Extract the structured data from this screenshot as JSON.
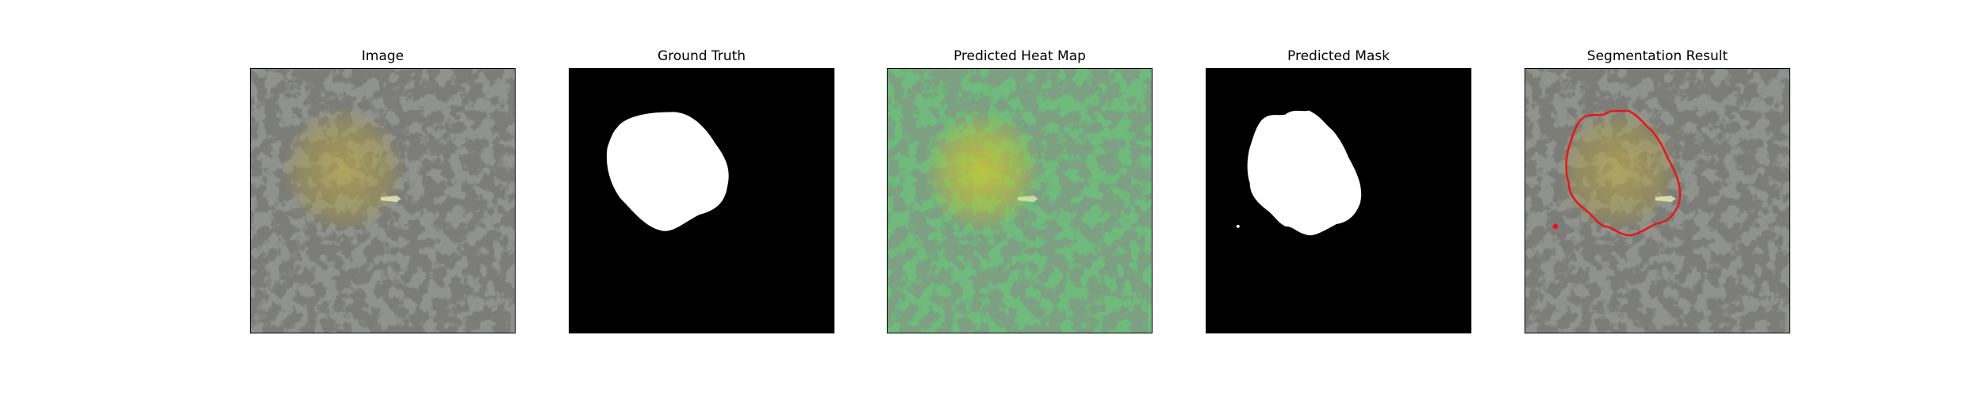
{
  "panels": [
    {
      "title": "Image"
    },
    {
      "title": "Ground Truth"
    },
    {
      "title": "Predicted Heat Map"
    },
    {
      "title": "Predicted Mask"
    },
    {
      "title": "Segmentation Result"
    }
  ],
  "colors": {
    "background": "#ffffff",
    "texture_light": "#8f928d",
    "texture_dark": "#2f302d",
    "lesion_tint": "#b5a23a",
    "heatmap_green": "#6fcf7f",
    "heatmap_yellow": "#c8c431",
    "mask_white": "#ffffff",
    "mask_black": "#000000",
    "contour_red": "#e8151b"
  }
}
